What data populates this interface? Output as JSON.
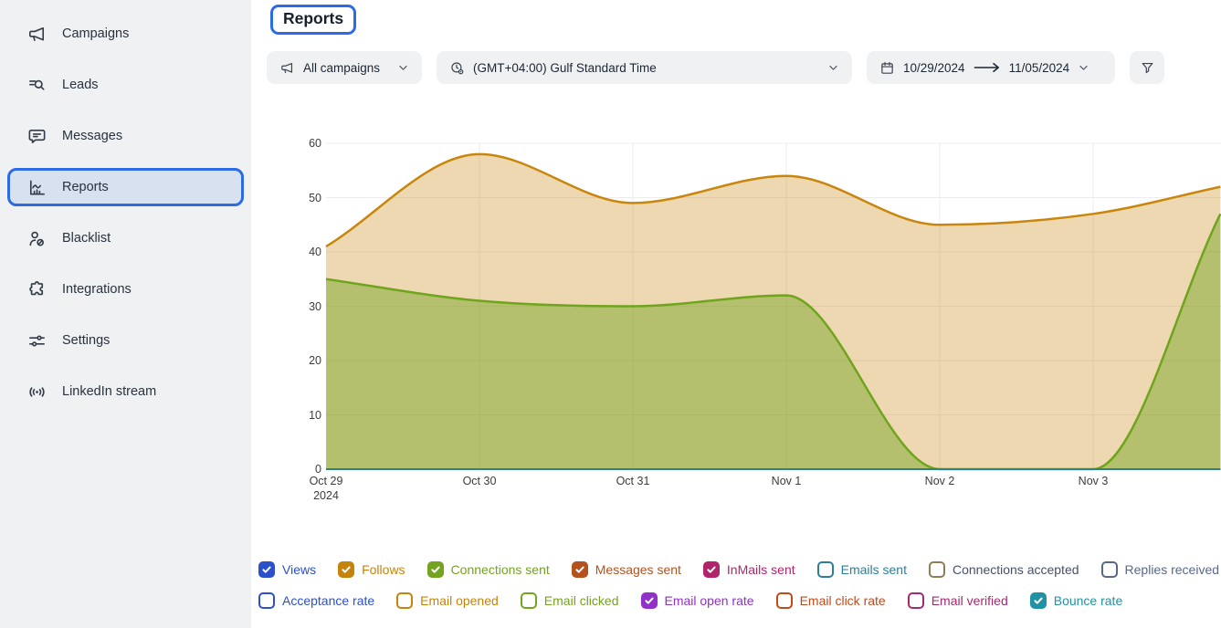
{
  "header": {
    "title": "Reports"
  },
  "sidebar": {
    "items": [
      {
        "label": "Campaigns",
        "icon": "megaphone-icon",
        "selected": false
      },
      {
        "label": "Leads",
        "icon": "leads-search-icon",
        "selected": false
      },
      {
        "label": "Messages",
        "icon": "message-bubble-icon",
        "selected": false
      },
      {
        "label": "Reports",
        "icon": "chart-icon",
        "selected": true
      },
      {
        "label": "Blacklist",
        "icon": "blocked-user-icon",
        "selected": false
      },
      {
        "label": "Integrations",
        "icon": "puzzle-icon",
        "selected": false
      },
      {
        "label": "Settings",
        "icon": "sliders-icon",
        "selected": false
      },
      {
        "label": "LinkedIn stream",
        "icon": "broadcast-icon",
        "selected": false
      }
    ]
  },
  "filters": {
    "campaigns": {
      "label": "All campaigns",
      "icon": "megaphone-icon"
    },
    "timezone": {
      "label": "(GMT+04:00) Gulf Standard Time",
      "icon": "clock-settings-icon"
    },
    "date_range": {
      "start": "10/29/2024",
      "end": "11/05/2024",
      "icon": "calendar-icon"
    },
    "filter_button": {
      "icon": "funnel-icon"
    }
  },
  "chart_data": {
    "type": "area",
    "title": "",
    "xlabel": "",
    "ylabel": "",
    "ylim": [
      0,
      60
    ],
    "y_ticks": [
      0,
      10,
      20,
      30,
      40,
      50,
      60
    ],
    "x_tick_labels": [
      [
        "Oct 29",
        "2024"
      ],
      [
        "Oct 30"
      ],
      [
        "Oct 31"
      ],
      [
        "Nov 1"
      ],
      [
        "Nov 2"
      ],
      [
        "Nov 3"
      ]
    ],
    "grid": true,
    "legend_position": "bottom",
    "series": [
      {
        "name": "Follows",
        "color": "#c8860c",
        "fill_opacity": 0.32,
        "x": [
          0,
          1,
          2,
          3,
          4,
          5,
          5.83
        ],
        "values": [
          41,
          58,
          49,
          54,
          45,
          47,
          52
        ]
      },
      {
        "name": "Connections sent",
        "color": "#6fa41d",
        "fill_opacity": 0.45,
        "x": [
          0,
          1,
          2,
          3,
          4,
          5,
          5.83
        ],
        "values": [
          35,
          31,
          30,
          32,
          0,
          0,
          47
        ]
      },
      {
        "name": "Views",
        "color": "#2b50c9",
        "fill_opacity": 0,
        "x": [
          0,
          5.83
        ],
        "values": [
          0,
          0
        ]
      },
      {
        "name": "Messages sent",
        "color": "#b5511d",
        "fill_opacity": 0,
        "x": [
          0,
          5.83
        ],
        "values": [
          0,
          0
        ]
      },
      {
        "name": "InMails sent",
        "color": "#b1246c",
        "fill_opacity": 0,
        "x": [
          0,
          5.83
        ],
        "values": [
          0,
          0
        ]
      },
      {
        "name": "Email open rate",
        "color": "#9231c9",
        "fill_opacity": 0,
        "x": [
          0,
          5.83
        ],
        "values": [
          0,
          0
        ]
      },
      {
        "name": "Bounce rate",
        "color": "#2d8096",
        "fill_opacity": 0,
        "x": [
          0,
          5.83
        ],
        "values": [
          0,
          0
        ]
      }
    ]
  },
  "legend": {
    "rows": [
      [
        {
          "label": "Views",
          "color": "#2b50c9",
          "checked": true
        },
        {
          "label": "Follows",
          "color": "#c5830a",
          "checked": true
        },
        {
          "label": "Connections sent",
          "color": "#74a41f",
          "checked": true
        },
        {
          "label": "Messages sent",
          "color": "#b5511d",
          "checked": true
        },
        {
          "label": "InMails sent",
          "color": "#b1246c",
          "checked": true
        },
        {
          "label": "Emails sent",
          "color": "#2d7f99",
          "checked": false
        },
        {
          "label": "Connections accepted",
          "color": "#8f7d55",
          "text_color": "#475069",
          "checked": false
        },
        {
          "label": "Replies received",
          "color": "#56688c",
          "checked": false
        }
      ],
      [
        {
          "label": "Acceptance rate",
          "color": "#2b50c9",
          "checked": false
        },
        {
          "label": "Email opened",
          "color": "#c5830a",
          "checked": false
        },
        {
          "label": "Email clicked",
          "color": "#74a41f",
          "checked": false
        },
        {
          "label": "Email open rate",
          "color": "#9231c9",
          "checked": true
        },
        {
          "label": "Email click rate",
          "color": "#c14a1b",
          "checked": false
        },
        {
          "label": "Email verified",
          "color": "#a62a70",
          "checked": false
        },
        {
          "label": "Bounce rate",
          "color": "#1f93a3",
          "checked": true
        }
      ]
    ]
  }
}
